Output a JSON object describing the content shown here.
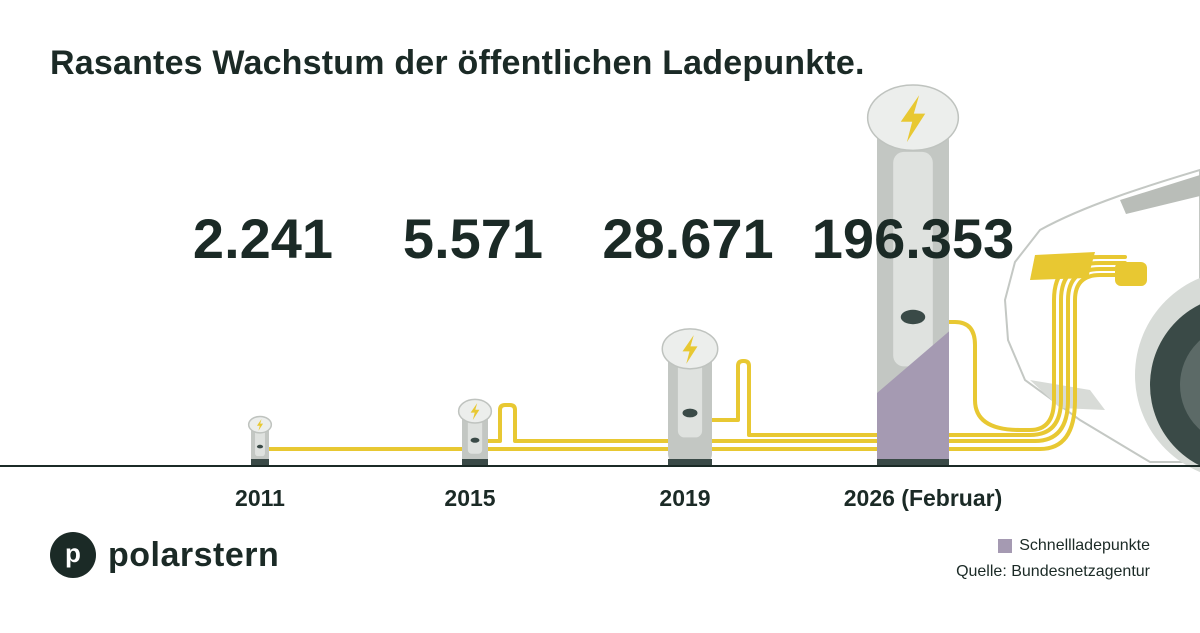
{
  "title": "Rasantes Wachstum der öffentlichen Ladepunkte.",
  "brand": {
    "logo_letter": "p",
    "name": "polarstern"
  },
  "legend": {
    "label": "Schnellladepunkte"
  },
  "source": {
    "label": "Quelle:",
    "value": "Bundesnetzagentur"
  },
  "colors": {
    "text": "#1b2a26",
    "cable": "#e8c832",
    "station": "#c3c7c3",
    "fast_charging": "#a59ab2",
    "car": "#e6e8e5",
    "tire": "#3a4a47"
  },
  "icons": [
    "charging-station-icon",
    "lightning-bolt-icon",
    "car-icon",
    "cable"
  ],
  "chart_data": {
    "type": "bar",
    "title": "Rasantes Wachstum der öffentlichen Ladepunkte.",
    "categories": [
      "2011",
      "2015",
      "2019",
      "2026 (Februar)"
    ],
    "series": [
      {
        "name": "",
        "values": [
          2241,
          5571,
          28671,
          196353
        ]
      }
    ],
    "value_labels": [
      "2.241",
      "5.571",
      "28.671",
      "196.353"
    ],
    "fast_charging_share": [
      0,
      0,
      0,
      0.3
    ],
    "xlabel": "",
    "ylabel": "",
    "grid": false,
    "legend": {
      "entries": [
        "Schnellladepunkte"
      ],
      "position": "bottom-right"
    }
  }
}
